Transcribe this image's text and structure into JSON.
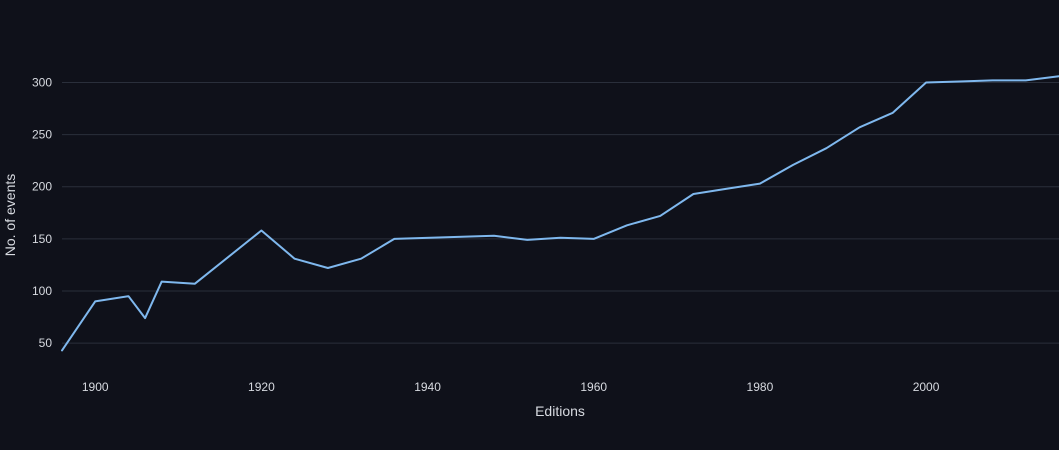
{
  "chart_data": {
    "type": "line",
    "title": "",
    "xlabel": "Editions",
    "ylabel": "No. of events",
    "x_ticks": [
      1900,
      1920,
      1940,
      1960,
      1980,
      2000
    ],
    "y_ticks": [
      50,
      100,
      150,
      200,
      250,
      300
    ],
    "xlim": [
      1896,
      2016
    ],
    "ylim": [
      28,
      360
    ],
    "grid": true,
    "series": [
      {
        "color": "#7fb8ee",
        "x": [
          1896,
          1900,
          1904,
          1906,
          1908,
          1912,
          1920,
          1924,
          1928,
          1932,
          1936,
          1948,
          1952,
          1956,
          1960,
          1964,
          1968,
          1972,
          1976,
          1980,
          1984,
          1988,
          1992,
          1996,
          2000,
          2004,
          2008,
          2012,
          2016
        ],
        "y": [
          43,
          90,
          95,
          74,
          109,
          107,
          158,
          131,
          122,
          131,
          150,
          153,
          149,
          151,
          150,
          163,
          172,
          193,
          198,
          203,
          221,
          237,
          257,
          271,
          300,
          301,
          302,
          302,
          306
        ]
      }
    ]
  }
}
